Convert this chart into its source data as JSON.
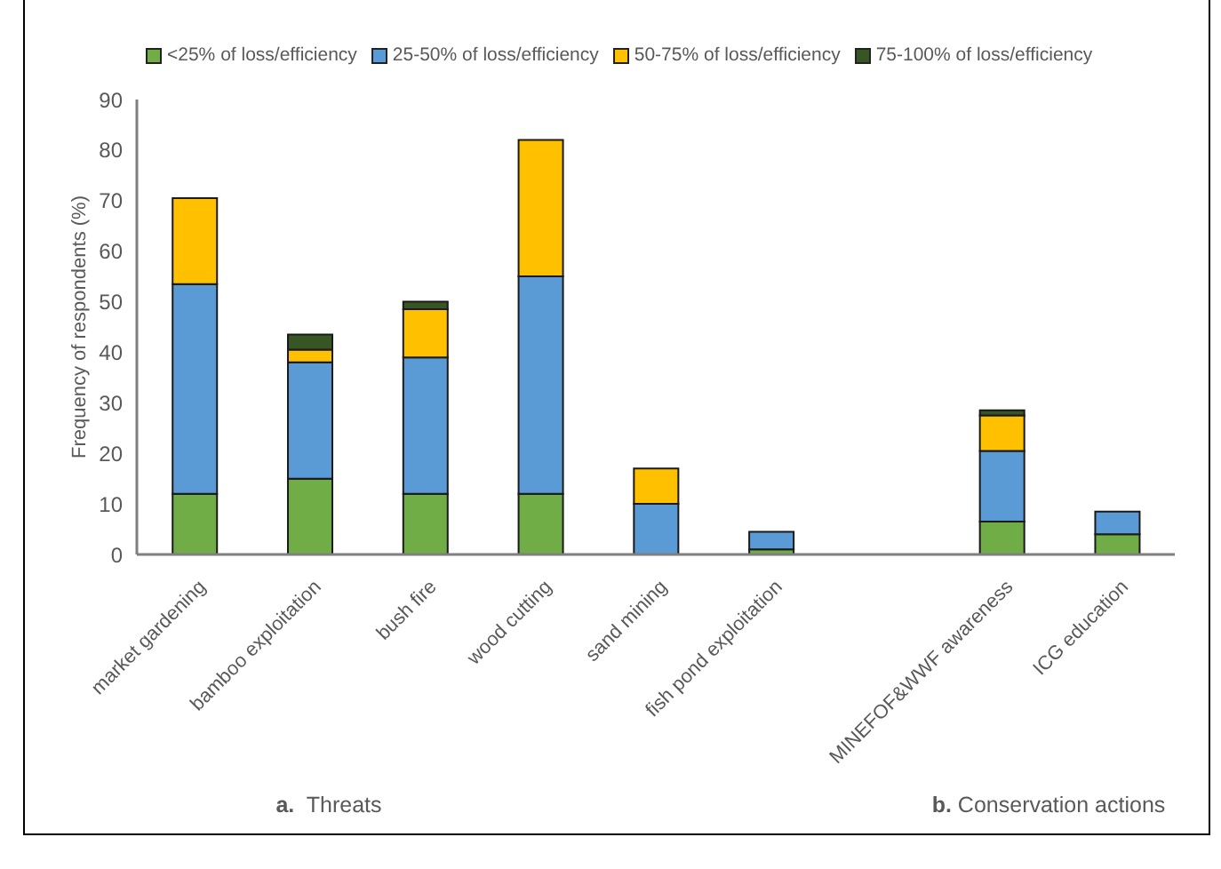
{
  "chart_data": {
    "type": "bar",
    "stacked": true,
    "categories": [
      "market gardening",
      "bamboo exploitation",
      "bush fire",
      "wood cutting",
      "sand mining",
      "fish pond exploitation",
      null,
      "MINEFOF&WWF awareness",
      "ICG education"
    ],
    "series": [
      {
        "name": "<25% of loss/efficiency",
        "color": "#70ad47",
        "values": [
          12,
          15,
          12,
          12,
          null,
          1,
          null,
          6.5,
          4
        ]
      },
      {
        "name": "25-50% of loss/efficiency",
        "color": "#5b9bd5",
        "values": [
          41.5,
          23,
          27,
          43,
          10,
          3.5,
          null,
          14,
          4.5
        ]
      },
      {
        "name": "50-75% of loss/efficiency",
        "color": "#ffc000",
        "values": [
          17,
          2.5,
          9.5,
          27,
          7,
          null,
          null,
          7,
          null
        ]
      },
      {
        "name": "75-100% of loss/efficiency",
        "color": "#375623",
        "values": [
          null,
          3,
          1.5,
          null,
          null,
          null,
          null,
          1,
          null
        ]
      }
    ],
    "ylabel": "Frequency of respondents (%)",
    "ylim": [
      0,
      90
    ],
    "yticks": [
      0,
      10,
      20,
      30,
      40,
      50,
      60,
      70,
      80,
      90
    ],
    "legend": "top",
    "annotations": [
      "a.  Threats",
      "b. Conservation actions"
    ]
  }
}
